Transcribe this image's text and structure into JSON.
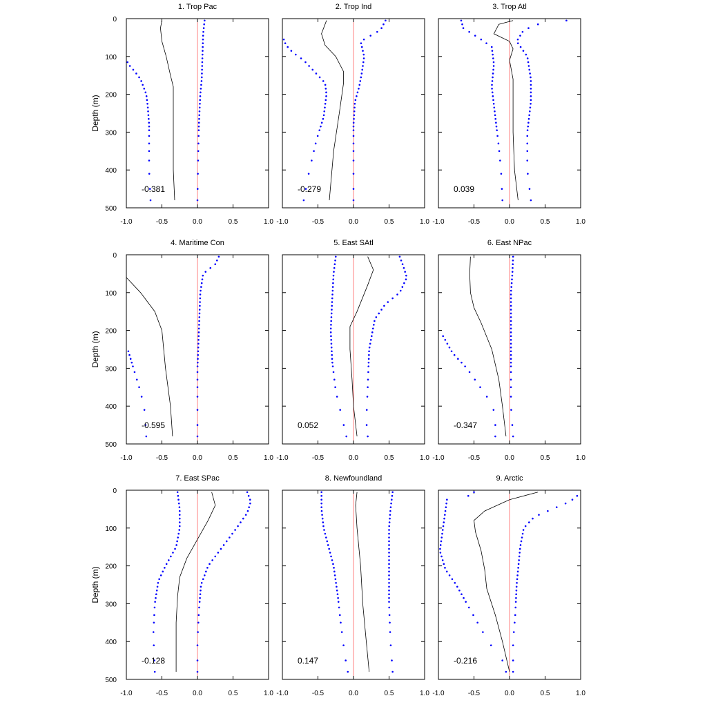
{
  "chart_data": {
    "type": "line",
    "ylabel": "Depth (m)",
    "ylim": [
      500,
      0
    ],
    "xlim": [
      -1.0,
      1.0
    ],
    "x_ticks": [
      "-1.0",
      "-0.5",
      "0.0",
      "0.5",
      "1.0"
    ],
    "y_ticks": [
      "0",
      "100",
      "200",
      "300",
      "400",
      "500"
    ],
    "colors": {
      "correlation_line": "#000000",
      "bound_points": "#0000ff",
      "zero_line": "#ff8080"
    },
    "depths": [
      5,
      15,
      25,
      35,
      45,
      55,
      65,
      75,
      85,
      95,
      105,
      115,
      125,
      135,
      145,
      155,
      165,
      175,
      185,
      195,
      205,
      215,
      225,
      235,
      245,
      255,
      265,
      275,
      285,
      295,
      310,
      330,
      350,
      375,
      410,
      450,
      480
    ],
    "panels": [
      {
        "title": "1. Trop Pac",
        "value_label": "-0.381",
        "line": [
          [
            -0.5,
            5
          ],
          [
            -0.52,
            25
          ],
          [
            -0.5,
            60
          ],
          [
            -0.44,
            100
          ],
          [
            -0.38,
            150
          ],
          [
            -0.34,
            180
          ],
          [
            -0.34,
            300
          ],
          [
            -0.34,
            400
          ],
          [
            -0.32,
            480
          ]
        ],
        "lower": [
          [
            -1.0,
            110
          ],
          [
            -0.95,
            125
          ],
          [
            -0.88,
            140
          ],
          [
            -0.8,
            160
          ],
          [
            -0.76,
            180
          ],
          [
            -0.72,
            200
          ],
          [
            -0.7,
            230
          ],
          [
            -0.68,
            280
          ],
          [
            -0.68,
            320
          ],
          [
            -0.68,
            360
          ],
          [
            -0.68,
            400
          ],
          [
            -0.66,
            480
          ]
        ],
        "upper": [
          [
            0.1,
            5
          ],
          [
            0.08,
            40
          ],
          [
            0.07,
            100
          ],
          [
            0.06,
            160
          ],
          [
            0.04,
            200
          ],
          [
            0.02,
            280
          ],
          [
            0.01,
            360
          ],
          [
            0.0,
            480
          ]
        ]
      },
      {
        "title": "2. Trop Ind",
        "value_label": "-0.279",
        "line": [
          [
            -0.38,
            5
          ],
          [
            -0.45,
            40
          ],
          [
            -0.4,
            70
          ],
          [
            -0.25,
            100
          ],
          [
            -0.14,
            140
          ],
          [
            -0.14,
            170
          ],
          [
            -0.2,
            250
          ],
          [
            -0.28,
            350
          ],
          [
            -0.34,
            480
          ]
        ],
        "lower": [
          [
            -0.98,
            55
          ],
          [
            -0.95,
            70
          ],
          [
            -0.85,
            90
          ],
          [
            -0.7,
            110
          ],
          [
            -0.55,
            140
          ],
          [
            -0.4,
            170
          ],
          [
            -0.38,
            200
          ],
          [
            -0.42,
            260
          ],
          [
            -0.52,
            320
          ],
          [
            -0.62,
            400
          ],
          [
            -0.7,
            480
          ]
        ],
        "upper": [
          [
            0.45,
            5
          ],
          [
            0.38,
            30
          ],
          [
            0.1,
            60
          ],
          [
            0.15,
            100
          ],
          [
            0.12,
            140
          ],
          [
            0.08,
            180
          ],
          [
            0.02,
            220
          ],
          [
            0.0,
            280
          ],
          [
            0.0,
            360
          ],
          [
            0.0,
            480
          ]
        ]
      },
      {
        "title": "3. Trop Atl",
        "value_label": "0.039",
        "line": [
          [
            0.05,
            5
          ],
          [
            -0.15,
            15
          ],
          [
            -0.22,
            40
          ],
          [
            0.0,
            60
          ],
          [
            0.05,
            80
          ],
          [
            0.0,
            110
          ],
          [
            0.05,
            160
          ],
          [
            0.05,
            300
          ],
          [
            0.07,
            400
          ],
          [
            0.12,
            480
          ]
        ],
        "lower": [
          [
            -0.68,
            5
          ],
          [
            -0.65,
            25
          ],
          [
            -0.4,
            55
          ],
          [
            -0.25,
            75
          ],
          [
            -0.22,
            120
          ],
          [
            -0.25,
            180
          ],
          [
            -0.2,
            260
          ],
          [
            -0.15,
            340
          ],
          [
            -0.12,
            400
          ],
          [
            -0.1,
            480
          ]
        ],
        "upper": [
          [
            0.8,
            5
          ],
          [
            0.4,
            15
          ],
          [
            0.2,
            30
          ],
          [
            0.1,
            60
          ],
          [
            0.25,
            100
          ],
          [
            0.3,
            160
          ],
          [
            0.3,
            220
          ],
          [
            0.25,
            300
          ],
          [
            0.25,
            400
          ],
          [
            0.3,
            480
          ]
        ]
      },
      {
        "title": "4. Maritime Con",
        "value_label": "-0.595",
        "line": [
          [
            -1.0,
            60
          ],
          [
            -0.8,
            100
          ],
          [
            -0.6,
            150
          ],
          [
            -0.5,
            200
          ],
          [
            -0.45,
            300
          ],
          [
            -0.38,
            400
          ],
          [
            -0.35,
            480
          ]
        ],
        "lower": [
          [
            -0.98,
            250
          ],
          [
            -0.9,
            300
          ],
          [
            -0.82,
            350
          ],
          [
            -0.75,
            400
          ],
          [
            -0.72,
            480
          ]
        ],
        "upper": [
          [
            0.3,
            5
          ],
          [
            0.25,
            25
          ],
          [
            0.08,
            50
          ],
          [
            0.04,
            100
          ],
          [
            0.02,
            200
          ],
          [
            0.0,
            300
          ],
          [
            0.0,
            480
          ]
        ]
      },
      {
        "title": "5. East SAtl",
        "value_label": "0.052",
        "line": [
          [
            0.2,
            5
          ],
          [
            0.28,
            40
          ],
          [
            0.2,
            80
          ],
          [
            0.05,
            150
          ],
          [
            -0.05,
            190
          ],
          [
            -0.05,
            250
          ],
          [
            -0.02,
            330
          ],
          [
            0.0,
            400
          ],
          [
            0.05,
            480
          ]
        ],
        "lower": [
          [
            -0.25,
            5
          ],
          [
            -0.28,
            50
          ],
          [
            -0.3,
            120
          ],
          [
            -0.32,
            200
          ],
          [
            -0.3,
            280
          ],
          [
            -0.25,
            360
          ],
          [
            -0.15,
            440
          ],
          [
            -0.1,
            480
          ]
        ],
        "upper": [
          [
            0.65,
            5
          ],
          [
            0.7,
            30
          ],
          [
            0.75,
            60
          ],
          [
            0.65,
            100
          ],
          [
            0.45,
            130
          ],
          [
            0.3,
            170
          ],
          [
            0.22,
            250
          ],
          [
            0.2,
            350
          ],
          [
            0.18,
            440
          ],
          [
            0.2,
            480
          ]
        ]
      },
      {
        "title": "6. East NPac",
        "value_label": "-0.347",
        "line": [
          [
            -0.55,
            5
          ],
          [
            -0.56,
            50
          ],
          [
            -0.55,
            100
          ],
          [
            -0.5,
            140
          ],
          [
            -0.4,
            180
          ],
          [
            -0.25,
            250
          ],
          [
            -0.15,
            330
          ],
          [
            -0.1,
            400
          ],
          [
            -0.05,
            480
          ]
        ],
        "lower": [
          [
            -0.95,
            210
          ],
          [
            -0.8,
            260
          ],
          [
            -0.6,
            300
          ],
          [
            -0.45,
            340
          ],
          [
            -0.3,
            380
          ],
          [
            -0.2,
            420
          ],
          [
            -0.2,
            480
          ]
        ],
        "upper": [
          [
            0.05,
            5
          ],
          [
            0.04,
            50
          ],
          [
            0.02,
            100
          ],
          [
            0.02,
            200
          ],
          [
            0.02,
            300
          ],
          [
            0.02,
            400
          ],
          [
            0.05,
            480
          ]
        ]
      },
      {
        "title": "7. East SPac",
        "value_label": "-0.128",
        "line": [
          [
            0.2,
            5
          ],
          [
            0.25,
            40
          ],
          [
            0.15,
            80
          ],
          [
            0.0,
            130
          ],
          [
            -0.15,
            180
          ],
          [
            -0.25,
            230
          ],
          [
            -0.28,
            280
          ],
          [
            -0.3,
            350
          ],
          [
            -0.3,
            480
          ]
        ],
        "lower": [
          [
            -0.28,
            5
          ],
          [
            -0.25,
            50
          ],
          [
            -0.25,
            100
          ],
          [
            -0.3,
            150
          ],
          [
            -0.45,
            200
          ],
          [
            -0.55,
            240
          ],
          [
            -0.6,
            300
          ],
          [
            -0.62,
            380
          ],
          [
            -0.6,
            480
          ]
        ],
        "upper": [
          [
            0.7,
            5
          ],
          [
            0.75,
            30
          ],
          [
            0.7,
            60
          ],
          [
            0.55,
            100
          ],
          [
            0.35,
            150
          ],
          [
            0.15,
            200
          ],
          [
            0.05,
            250
          ],
          [
            0.02,
            320
          ],
          [
            0.0,
            400
          ],
          [
            0.0,
            480
          ]
        ]
      },
      {
        "title": "8. Newfoundland",
        "value_label": "0.147",
        "line": [
          [
            0.05,
            5
          ],
          [
            0.03,
            40
          ],
          [
            0.05,
            100
          ],
          [
            0.1,
            200
          ],
          [
            0.13,
            300
          ],
          [
            0.18,
            400
          ],
          [
            0.22,
            480
          ]
        ],
        "lower": [
          [
            -0.45,
            5
          ],
          [
            -0.45,
            50
          ],
          [
            -0.42,
            100
          ],
          [
            -0.35,
            150
          ],
          [
            -0.28,
            200
          ],
          [
            -0.22,
            280
          ],
          [
            -0.18,
            350
          ],
          [
            -0.12,
            440
          ],
          [
            -0.08,
            480
          ]
        ],
        "upper": [
          [
            0.55,
            5
          ],
          [
            0.52,
            50
          ],
          [
            0.5,
            100
          ],
          [
            0.5,
            200
          ],
          [
            0.5,
            300
          ],
          [
            0.52,
            400
          ],
          [
            0.55,
            480
          ]
        ]
      },
      {
        "title": "9. Arctic",
        "value_label": "-0.216",
        "line": [
          [
            0.4,
            5
          ],
          [
            0.0,
            25
          ],
          [
            -0.35,
            55
          ],
          [
            -0.5,
            80
          ],
          [
            -0.48,
            110
          ],
          [
            -0.4,
            160
          ],
          [
            -0.35,
            210
          ],
          [
            -0.32,
            260
          ],
          [
            -0.2,
            330
          ],
          [
            -0.1,
            400
          ],
          [
            0.0,
            480
          ]
        ],
        "lower": [
          [
            -0.5,
            5
          ],
          [
            -0.58,
            15
          ],
          [
            -0.88,
            25
          ],
          [
            -0.98,
            160
          ],
          [
            -0.9,
            210
          ],
          [
            -0.75,
            250
          ],
          [
            -0.6,
            300
          ],
          [
            -0.45,
            350
          ],
          [
            -0.3,
            400
          ],
          [
            -0.1,
            450
          ],
          [
            -0.05,
            480
          ]
        ],
        "upper": [
          [
            0.95,
            15
          ],
          [
            0.85,
            30
          ],
          [
            0.6,
            50
          ],
          [
            0.35,
            70
          ],
          [
            0.2,
            100
          ],
          [
            0.15,
            150
          ],
          [
            0.1,
            250
          ],
          [
            0.08,
            330
          ],
          [
            0.05,
            400
          ],
          [
            0.05,
            480
          ]
        ]
      }
    ]
  }
}
